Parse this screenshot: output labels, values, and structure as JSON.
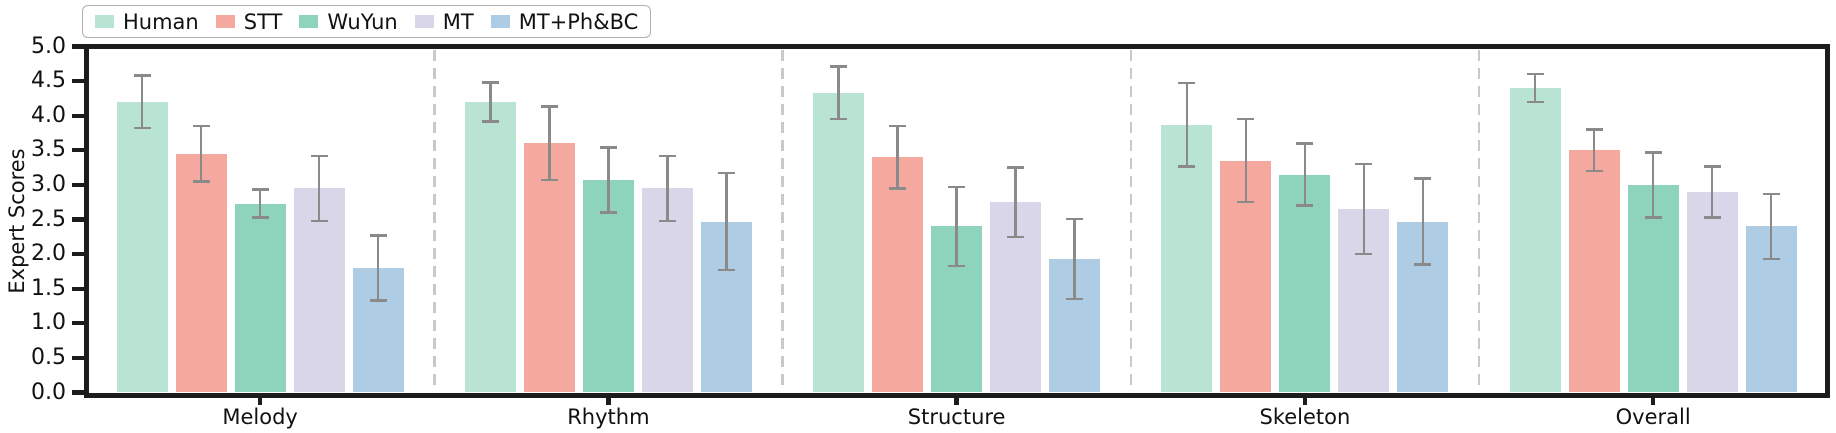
{
  "chart_data": {
    "type": "bar",
    "title": "",
    "xlabel": "",
    "ylabel": "Expert Scores",
    "ylim": [
      0.0,
      5.0
    ],
    "ytick_step": 0.5,
    "ytick_labels": [
      "0.0",
      "0.5",
      "1.0",
      "1.5",
      "2.0",
      "2.5",
      "3.0",
      "3.5",
      "4.0",
      "4.5",
      "5.0"
    ],
    "categories": [
      "Melody",
      "Rhythm",
      "Structure",
      "Skeleton",
      "Overall"
    ],
    "series": [
      {
        "name": "Human",
        "color": "#b9e3d2",
        "values": [
          4.2,
          4.2,
          4.33,
          3.87,
          4.4
        ],
        "errors": [
          0.38,
          0.28,
          0.38,
          0.6,
          0.2
        ]
      },
      {
        "name": "STT",
        "color": "#f5a89e",
        "values": [
          3.45,
          3.6,
          3.4,
          3.35,
          3.5
        ],
        "errors": [
          0.4,
          0.53,
          0.45,
          0.6,
          0.3
        ]
      },
      {
        "name": "WuYun",
        "color": "#8ed3bc",
        "values": [
          2.73,
          3.07,
          2.4,
          3.15,
          3.0
        ],
        "errors": [
          0.2,
          0.47,
          0.57,
          0.45,
          0.47
        ]
      },
      {
        "name": "MT",
        "color": "#d9d6e9",
        "values": [
          2.95,
          2.95,
          2.75,
          2.65,
          2.9
        ],
        "errors": [
          0.47,
          0.47,
          0.5,
          0.65,
          0.37
        ]
      },
      {
        "name": "MT+Ph&BC",
        "color": "#aecde4",
        "values": [
          1.8,
          2.47,
          1.93,
          2.47,
          2.4
        ],
        "errors": [
          0.47,
          0.7,
          0.58,
          0.62,
          0.47
        ]
      }
    ],
    "error_bar_color": "#8a8a8a",
    "divider_color": "#c9c9c9",
    "spine_color": "#1c1c1e",
    "legend_position": "upper-left horizontal",
    "grid": false
  }
}
